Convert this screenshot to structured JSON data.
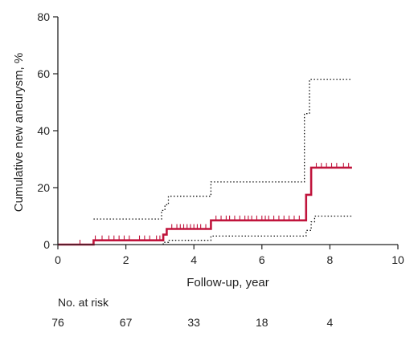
{
  "chart_data": {
    "type": "line",
    "xlabel": "Follow-up, year",
    "ylabel": "Cumulative new aneurysm, %",
    "xlim": [
      0,
      10
    ],
    "ylim": [
      0,
      80
    ],
    "xticks": [
      0,
      2,
      4,
      6,
      8,
      10
    ],
    "yticks": [
      0,
      20,
      40,
      60,
      80
    ],
    "grid": false,
    "colors": {
      "estimate": "#c0143c",
      "ci": "#111111"
    },
    "series": [
      {
        "role": "estimate",
        "style": "solid",
        "steps": [
          [
            0,
            0
          ],
          [
            1.05,
            0
          ],
          [
            1.05,
            1.5
          ],
          [
            3.1,
            1.5
          ],
          [
            3.1,
            3.5
          ],
          [
            3.2,
            3.5
          ],
          [
            3.2,
            5.5
          ],
          [
            4.5,
            5.5
          ],
          [
            4.5,
            8.5
          ],
          [
            7.3,
            8.5
          ],
          [
            7.3,
            17.5
          ],
          [
            7.45,
            17.5
          ],
          [
            7.45,
            27
          ],
          [
            8.65,
            27
          ]
        ],
        "censor_x": [
          0.65,
          1.1,
          1.3,
          1.5,
          1.65,
          1.8,
          1.95,
          2.1,
          2.4,
          2.55,
          2.7,
          2.9,
          3.0,
          3.35,
          3.5,
          3.6,
          3.7,
          3.8,
          3.9,
          4.0,
          4.1,
          4.2,
          4.35,
          4.65,
          4.8,
          4.95,
          5.05,
          5.2,
          5.35,
          5.5,
          5.6,
          5.7,
          5.85,
          6.0,
          6.1,
          6.2,
          6.35,
          6.5,
          6.65,
          6.8,
          6.95,
          7.1,
          7.6,
          7.75,
          7.9,
          8.05,
          8.2,
          8.4,
          8.55
        ]
      },
      {
        "role": "ci-upper",
        "style": "dotted",
        "steps": [
          [
            1.05,
            9
          ],
          [
            3.05,
            9
          ],
          [
            3.05,
            12
          ],
          [
            3.15,
            12
          ],
          [
            3.15,
            14
          ],
          [
            3.25,
            14
          ],
          [
            3.25,
            17
          ],
          [
            4.5,
            17
          ],
          [
            4.5,
            22
          ],
          [
            7.25,
            22
          ],
          [
            7.25,
            46
          ],
          [
            7.4,
            46
          ],
          [
            7.4,
            58
          ],
          [
            8.65,
            58
          ]
        ]
      },
      {
        "role": "ci-lower",
        "style": "dotted",
        "steps": [
          [
            3.1,
            0
          ],
          [
            3.1,
            0.8
          ],
          [
            3.25,
            0.8
          ],
          [
            3.25,
            1.5
          ],
          [
            4.5,
            1.5
          ],
          [
            4.5,
            3
          ],
          [
            7.3,
            3
          ],
          [
            7.3,
            5
          ],
          [
            7.45,
            5
          ],
          [
            7.45,
            8
          ],
          [
            7.55,
            8
          ],
          [
            7.55,
            10
          ],
          [
            8.65,
            10
          ]
        ]
      }
    ],
    "risk_table": {
      "title": "No. at risk",
      "years": [
        0,
        2,
        4,
        6,
        8
      ],
      "counts": [
        "76",
        "67",
        "33",
        "18",
        "4"
      ]
    }
  }
}
